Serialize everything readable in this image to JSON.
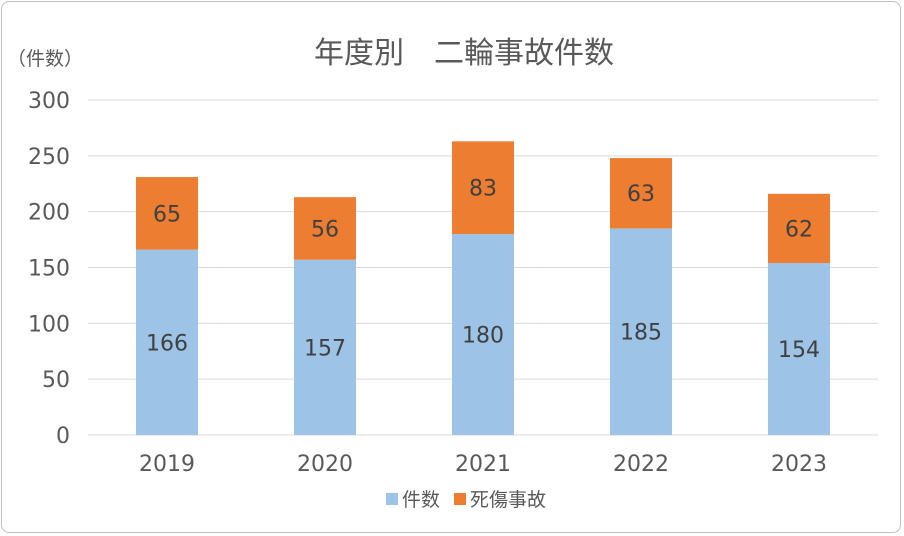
{
  "chart_data": {
    "type": "bar",
    "stacked": true,
    "title": "年度別　二輪事故件数",
    "ylabel": "（件数）",
    "xlabel": "",
    "categories": [
      "2019",
      "2020",
      "2021",
      "2022",
      "2023"
    ],
    "series": [
      {
        "name": "件数",
        "values": [
          166,
          157,
          180,
          185,
          154
        ],
        "color": "#9dc3e6"
      },
      {
        "name": "死傷事故",
        "values": [
          65,
          56,
          83,
          63,
          62
        ],
        "color": "#ed7d31"
      }
    ],
    "ylim": [
      0,
      300
    ],
    "yticks": [
      "0",
      "50",
      "100",
      "150",
      "200",
      "250",
      "300"
    ],
    "grid": true,
    "legend_position": "bottom"
  }
}
